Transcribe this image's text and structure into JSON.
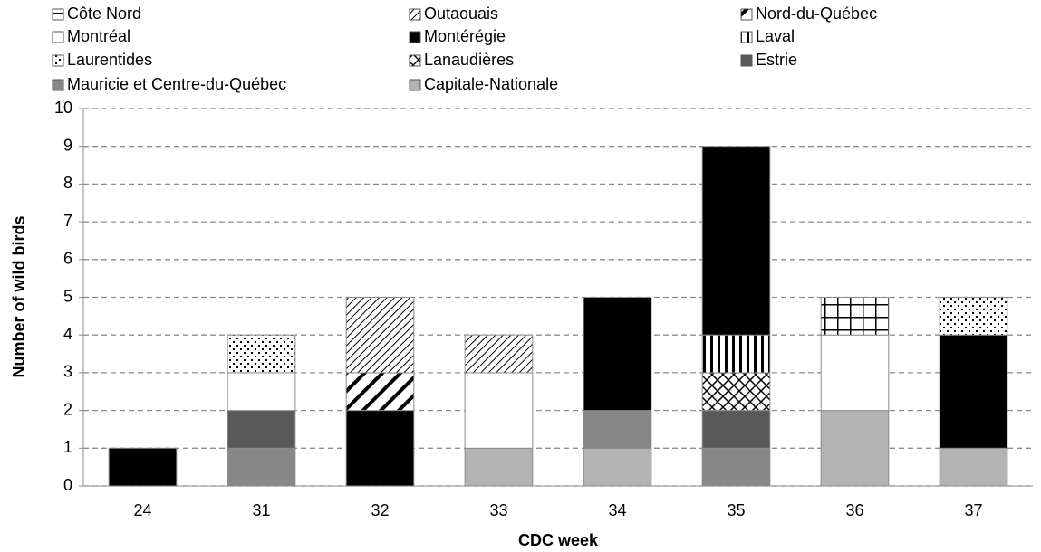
{
  "chart_data": {
    "type": "stacked-bar",
    "x_label": "CDC week",
    "y_label": "Number of wild birds",
    "categories": [
      "24",
      "31",
      "32",
      "33",
      "34",
      "35",
      "36",
      "37"
    ],
    "ylim": [
      0,
      10
    ],
    "yticks": [
      0,
      1,
      2,
      3,
      4,
      5,
      6,
      7,
      8,
      9,
      10
    ],
    "grid": true,
    "series": [
      {
        "name": "Côte Nord",
        "color": "#000000",
        "pattern": "grid",
        "values": [
          0,
          0,
          0,
          0,
          0,
          0,
          1,
          0
        ]
      },
      {
        "name": "Outaouais",
        "color": "#000000",
        "pattern": "fine-diagonal",
        "values": [
          0,
          0,
          2,
          1,
          0,
          0,
          0,
          0
        ]
      },
      {
        "name": "Nord-du-Québec",
        "color": "#000000",
        "pattern": "wide-diagonal",
        "values": [
          0,
          0,
          1,
          0,
          0,
          0,
          0,
          0
        ]
      },
      {
        "name": "Laurentides",
        "color": "#000000",
        "pattern": "dots",
        "values": [
          0,
          1,
          0,
          0,
          0,
          0,
          0,
          1
        ]
      },
      {
        "name": "Montréal",
        "color": "#ffffff",
        "pattern": "solid",
        "values": [
          0,
          1,
          0,
          2,
          0,
          0,
          2,
          0
        ]
      },
      {
        "name": "Montérégie",
        "color": "#000000",
        "pattern": "solid",
        "values": [
          1,
          0,
          2,
          0,
          3,
          5,
          0,
          3
        ]
      },
      {
        "name": "Laval",
        "color": "#000000",
        "pattern": "vertical",
        "values": [
          0,
          0,
          0,
          0,
          0,
          1,
          0,
          0
        ]
      },
      {
        "name": "Lanaudières",
        "color": "#000000",
        "pattern": "diagonal-cross",
        "values": [
          0,
          0,
          0,
          0,
          0,
          1,
          0,
          0
        ]
      },
      {
        "name": "Estrie",
        "color": "#595959",
        "pattern": "solid",
        "values": [
          0,
          1,
          0,
          0,
          0,
          1,
          0,
          0
        ]
      },
      {
        "name": "Mauricie et Centre-du-Québec",
        "color": "#878787",
        "pattern": "solid",
        "values": [
          0,
          1,
          0,
          0,
          1,
          1,
          0,
          0
        ]
      },
      {
        "name": "Capitale-Nationale",
        "color": "#b3b3b3",
        "pattern": "solid",
        "values": [
          0,
          0,
          0,
          1,
          1,
          0,
          2,
          1
        ]
      }
    ]
  }
}
